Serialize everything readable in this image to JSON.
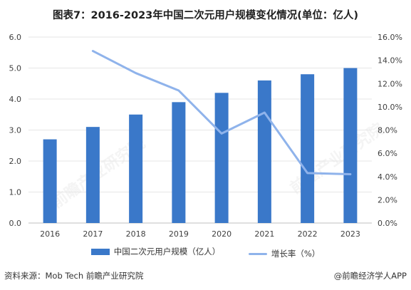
{
  "colors": {
    "bar": "#3a78c9",
    "line": "#8fb3eb",
    "grid": "#e6e6e6",
    "axis": "#bfbfbf"
  },
  "watermark_text": "前瞻产业研究院",
  "footer": {
    "source": "资料来源：Mob Tech 前瞻产业研究院",
    "brand": "@前瞻经济学人APP"
  },
  "chart_data": {
    "type": "bar",
    "title": "图表7：2016-2023年中国二次元用户规模变化情况(单位：亿人)",
    "categories": [
      "2016",
      "2017",
      "2018",
      "2019",
      "2020",
      "2021",
      "2022",
      "2023"
    ],
    "series": [
      {
        "name": "中国二次元用户规模（亿人）",
        "type": "bar",
        "axis": "left",
        "values": [
          2.7,
          3.1,
          3.5,
          3.9,
          4.2,
          4.6,
          4.8,
          5.0
        ]
      },
      {
        "name": "增长率（%）",
        "type": "line",
        "axis": "right",
        "values": [
          null,
          14.8,
          12.9,
          11.4,
          7.7,
          9.5,
          4.3,
          4.2
        ]
      }
    ],
    "y_left": {
      "min": 0,
      "max": 6,
      "ticks": [
        "0.0",
        "1.0",
        "2.0",
        "3.0",
        "4.0",
        "5.0",
        "6.0"
      ]
    },
    "y_right": {
      "min": 0,
      "max": 16,
      "ticks": [
        "0.0%",
        "2.0%",
        "4.0%",
        "6.0%",
        "8.0%",
        "10.0%",
        "12.0%",
        "14.0%",
        "16.0%"
      ]
    },
    "grid": true,
    "legend": "bottom"
  }
}
